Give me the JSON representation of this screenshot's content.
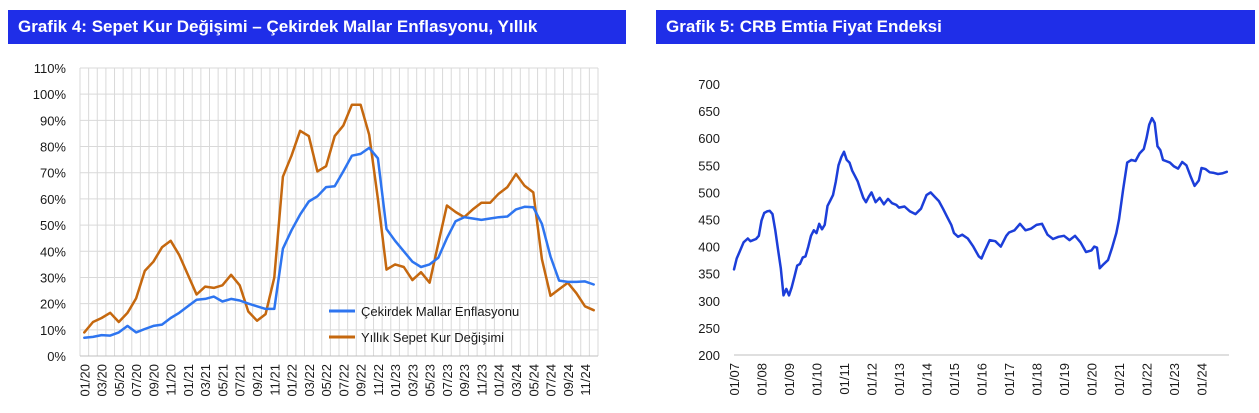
{
  "chart_data": [
    {
      "type": "line",
      "title": "Grafik 4: Sepet Kur Değişimi – Çekirdek Mallar Enflasyonu, Yıllık",
      "ylim": [
        0,
        110
      ],
      "y_ticks": [
        "0%",
        "10%",
        "20%",
        "30%",
        "40%",
        "50%",
        "60%",
        "70%",
        "80%",
        "90%",
        "100%",
        "110%"
      ],
      "x_tick_labels": [
        "01/20",
        "03/20",
        "05/20",
        "07/20",
        "09/20",
        "11/20",
        "01/21",
        "03/21",
        "05/21",
        "07/21",
        "09/21",
        "11/21",
        "01/22",
        "03/22",
        "05/22",
        "07/22",
        "09/22",
        "11/22",
        "01/23",
        "03/23",
        "05/23",
        "07/23",
        "09/23",
        "11/23",
        "01/24",
        "03/24",
        "05/24",
        "07/24",
        "09/24",
        "11/24"
      ],
      "grid": true,
      "legend_position": "bottom-right",
      "colors": {
        "core": "#2e75f0",
        "basket": "#c5680f",
        "grid": "#d9d9d9",
        "axis": "#bfbfbf"
      },
      "series": [
        {
          "name": "Çekirdek Mallar Enflasyonu",
          "values": [
            7.0,
            7.3,
            8.0,
            7.8,
            9.0,
            11.5,
            9.0,
            10.3,
            11.5,
            12.0,
            14.5,
            16.5,
            19.0,
            21.5,
            21.8,
            22.7,
            20.8,
            21.8,
            21.2,
            20.0,
            19.0,
            18.0,
            18.0,
            41.0,
            48.0,
            54.0,
            59.0,
            61.0,
            64.5,
            64.8,
            70.5,
            76.5,
            77.2,
            79.5,
            75.5,
            48.5,
            44.0,
            40.0,
            36.0,
            34.0,
            35.0,
            37.5,
            45.0,
            51.5,
            53.0,
            52.5,
            52.0,
            52.5,
            53.0,
            53.3,
            56.0,
            57.0,
            56.8,
            50.5,
            38.0,
            28.8,
            28.3,
            28.3,
            28.5,
            27.3
          ]
        },
        {
          "name": "Yıllık Sepet Kur Değişimi",
          "values": [
            9.0,
            13.0,
            14.5,
            16.5,
            13.0,
            16.5,
            22.0,
            32.5,
            36.0,
            41.5,
            44.0,
            38.5,
            31.0,
            23.5,
            26.5,
            26.0,
            27.0,
            31.0,
            27.0,
            17.0,
            13.5,
            16.0,
            30.0,
            68.5,
            76.5,
            86.0,
            84.0,
            70.5,
            72.5,
            84.0,
            88.0,
            96.0,
            96.0,
            84.5,
            60.0,
            33.0,
            35.0,
            34.0,
            29.0,
            32.0,
            28.0,
            43.0,
            57.5,
            55.0,
            53.0,
            56.0,
            58.5,
            58.5,
            62.0,
            64.5,
            69.5,
            65.0,
            62.5,
            37.0,
            23.0,
            25.5,
            28.0,
            24.0,
            19.0,
            17.5
          ]
        }
      ]
    },
    {
      "type": "line",
      "title": "Grafik 5: CRB Emtia Fiyat Endeksi",
      "ylim": [
        200,
        700
      ],
      "y_ticks": [
        "200",
        "250",
        "300",
        "350",
        "400",
        "450",
        "500",
        "550",
        "600",
        "650",
        "700"
      ],
      "x_tick_labels": [
        "01/07",
        "01/08",
        "01/09",
        "01/10",
        "01/11",
        "01/12",
        "01/13",
        "01/14",
        "01/15",
        "01/16",
        "01/17",
        "01/18",
        "01/19",
        "01/20",
        "01/21",
        "01/22",
        "01/23",
        "01/24"
      ],
      "grid": false,
      "colors": {
        "line": "#1c3ed9",
        "axis": "#bfbfbf"
      },
      "series": [
        {
          "name": "",
          "x": [
            2007.0,
            2007.1,
            2007.2,
            2007.35,
            2007.5,
            2007.6,
            2007.7,
            2007.8,
            2007.9,
            2008.0,
            2008.1,
            2008.2,
            2008.3,
            2008.4,
            2008.5,
            2008.6,
            2008.7,
            2008.8,
            2008.9,
            2009.0,
            2009.1,
            2009.2,
            2009.3,
            2009.4,
            2009.5,
            2009.6,
            2009.7,
            2009.8,
            2009.9,
            2010.0,
            2010.1,
            2010.2,
            2010.3,
            2010.4,
            2010.5,
            2010.6,
            2010.7,
            2010.8,
            2010.9,
            2011.0,
            2011.1,
            2011.2,
            2011.3,
            2011.4,
            2011.5,
            2011.6,
            2011.7,
            2011.8,
            2011.9,
            2012.0,
            2012.15,
            2012.3,
            2012.45,
            2012.6,
            2012.75,
            2012.9,
            2013.0,
            2013.2,
            2013.4,
            2013.6,
            2013.8,
            2014.0,
            2014.15,
            2014.3,
            2014.45,
            2014.6,
            2014.75,
            2014.9,
            2015.0,
            2015.15,
            2015.3,
            2015.5,
            2015.7,
            2015.9,
            2016.0,
            2016.1,
            2016.3,
            2016.5,
            2016.7,
            2016.9,
            2017.0,
            2017.2,
            2017.4,
            2017.6,
            2017.8,
            2018.0,
            2018.2,
            2018.4,
            2018.6,
            2018.8,
            2019.0,
            2019.2,
            2019.4,
            2019.6,
            2019.8,
            2020.0,
            2020.1,
            2020.2,
            2020.3,
            2020.45,
            2020.6,
            2020.75,
            2020.9,
            2021.0,
            2021.15,
            2021.3,
            2021.45,
            2021.6,
            2021.75,
            2021.9,
            2022.0,
            2022.1,
            2022.2,
            2022.3,
            2022.4,
            2022.5,
            2022.6,
            2022.7,
            2022.85,
            2023.0,
            2023.15,
            2023.3,
            2023.45,
            2023.6,
            2023.75,
            2023.9,
            2024.0,
            2024.15,
            2024.3,
            2024.45,
            2024.6,
            2024.75,
            2024.92
          ],
          "values": [
            358,
            378,
            390,
            408,
            415,
            410,
            412,
            414,
            420,
            448,
            462,
            465,
            466,
            460,
            430,
            395,
            360,
            310,
            322,
            310,
            325,
            345,
            365,
            368,
            380,
            382,
            400,
            420,
            430,
            425,
            442,
            432,
            440,
            475,
            485,
            495,
            520,
            550,
            565,
            575,
            560,
            555,
            540,
            530,
            520,
            505,
            490,
            482,
            492,
            500,
            482,
            490,
            478,
            488,
            480,
            477,
            472,
            474,
            465,
            460,
            470,
            495,
            500,
            492,
            484,
            470,
            455,
            440,
            425,
            418,
            422,
            415,
            400,
            382,
            378,
            390,
            412,
            410,
            400,
            420,
            426,
            430,
            442,
            430,
            433,
            440,
            442,
            422,
            414,
            418,
            420,
            412,
            420,
            408,
            390,
            393,
            400,
            398,
            360,
            368,
            375,
            398,
            425,
            450,
            505,
            555,
            560,
            558,
            572,
            580,
            600,
            625,
            637,
            628,
            585,
            578,
            560,
            558,
            555,
            548,
            544,
            556,
            550,
            530,
            512,
            522,
            545,
            543,
            537,
            536,
            534,
            535,
            538
          ]
        }
      ]
    }
  ]
}
